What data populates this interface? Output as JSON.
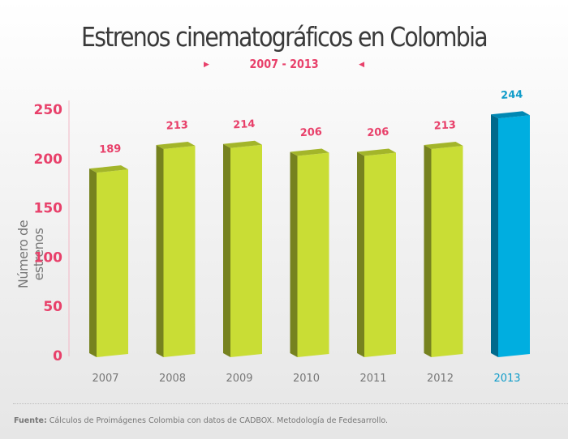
{
  "chart_data": {
    "type": "bar",
    "title": "Estrenos cinematográficos en Colombia",
    "subtitle": "2007 - 2013",
    "xlabel": "",
    "ylabel": "Número de estrenos",
    "ylim": [
      0,
      250
    ],
    "yticks": [
      0,
      50,
      100,
      150,
      200,
      250
    ],
    "grid": false,
    "categories": [
      "2007",
      "2008",
      "2009",
      "2010",
      "2011",
      "2012",
      "2013"
    ],
    "values": [
      189,
      213,
      214,
      206,
      206,
      213,
      244
    ],
    "highlight_index": 6
  },
  "colors": {
    "bar_front": "#c9dd35",
    "bar_side": "#76821f",
    "bar_top": "#a3b52a",
    "highlight_front": "#00aee0",
    "highlight_side": "#006a8c",
    "highlight_top": "#0088b3",
    "accent": "#e8406a",
    "highlight_text": "#109cc9",
    "axis_line": "#f2b6c4",
    "tick_text": "#e8406a",
    "category_text": "#777777"
  },
  "source": {
    "label": "Fuente:",
    "text": " Cálculos de Proimágenes Colombia con datos de CADBOX. Metodología de Fedesarrollo."
  }
}
